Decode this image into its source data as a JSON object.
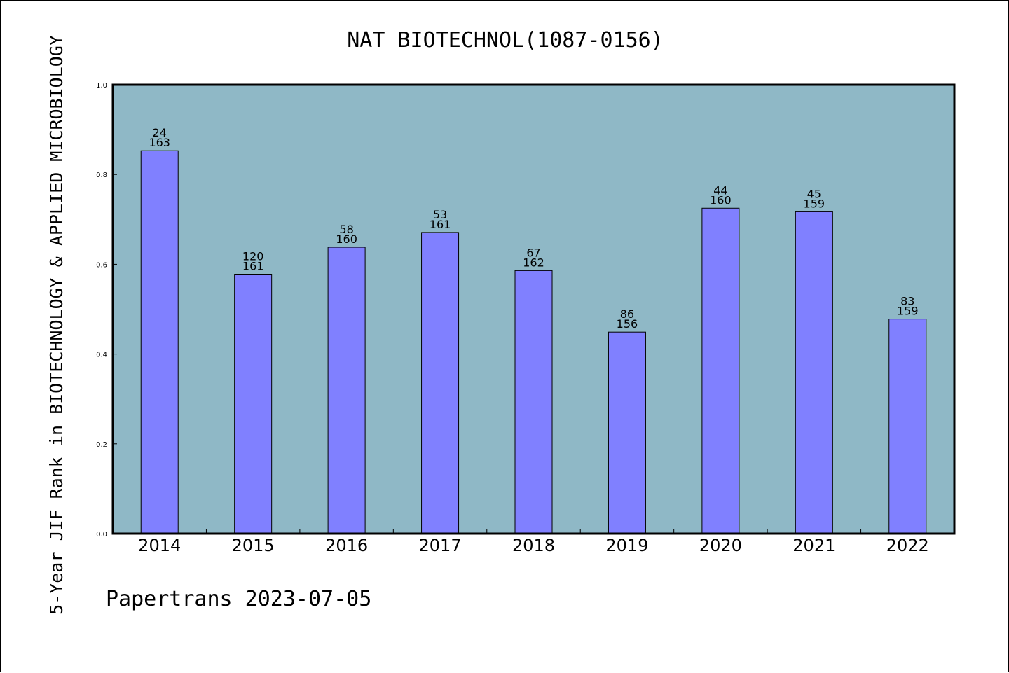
{
  "chart_data": {
    "type": "bar",
    "title": "NAT BIOTECHNOL(1087-0156)",
    "xlabel": "",
    "ylabel": "5-Year JIF Rank in BIOTECHNOLOGY & APPLIED MICROBIOLOGY",
    "ylim": [
      0,
      1.0
    ],
    "yticks": [
      "0.0",
      "0.2",
      "0.4",
      "0.6",
      "0.8",
      "1.0"
    ],
    "categories": [
      "2014",
      "2015",
      "2016",
      "2017",
      "2018",
      "2019",
      "2020",
      "2021",
      "2022"
    ],
    "values": [
      0.853,
      0.578,
      0.638,
      0.671,
      0.586,
      0.449,
      0.725,
      0.717,
      0.478
    ],
    "rank": [
      "24",
      "120",
      "58",
      "53",
      "67",
      "86",
      "44",
      "45",
      "83"
    ],
    "total": [
      "163",
      "161",
      "160",
      "161",
      "162",
      "156",
      "160",
      "159",
      "159"
    ],
    "grid": false,
    "legend": "none",
    "colors": {
      "plot_background": "#8fb8c6",
      "bar_fill": "#8080ff",
      "bar_stroke": "#000000",
      "axis": "#000000"
    }
  },
  "footer": {
    "text": "Papertrans 2023-07-05"
  }
}
